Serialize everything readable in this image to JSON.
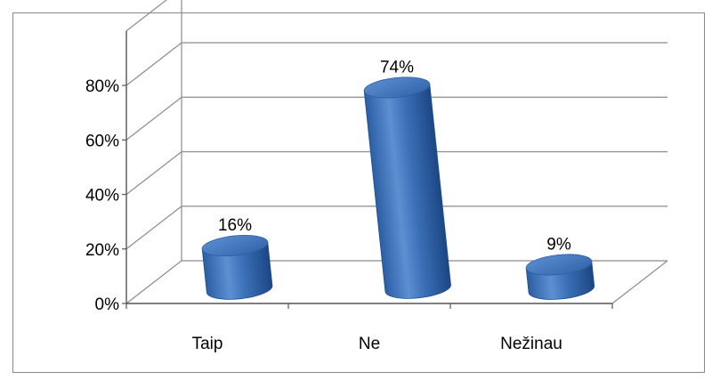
{
  "chart_data": {
    "type": "bar",
    "style": "3d-cylinder",
    "categories": [
      "Taip",
      "Ne",
      "Nežinau"
    ],
    "values": [
      16,
      74,
      9
    ],
    "data_labels": [
      "16%",
      "74%",
      "9%"
    ],
    "y_ticks": [
      "0%",
      "20%",
      "40%",
      "60%",
      "80%"
    ],
    "ylim": [
      0,
      80
    ],
    "grid": true,
    "legend": "none",
    "title": "",
    "xlabel": "",
    "ylabel": "",
    "colors": {
      "bar": "#3a6fb5",
      "bar_dark": "#1f4f8f",
      "bar_light": "#6f9ad6",
      "grid": "#8c8c8c"
    }
  }
}
